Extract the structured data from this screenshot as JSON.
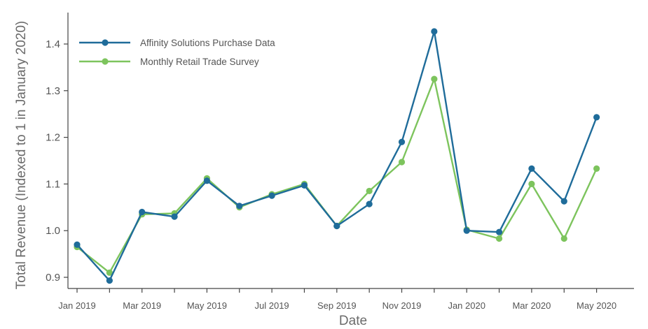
{
  "chart_data": {
    "type": "line",
    "title": "",
    "xlabel": "Date",
    "ylabel": "Total Revenue (Indexed to 1 in January 2020)",
    "ylim": [
      0.872,
      1.46
    ],
    "yticks": [
      0.9,
      1.0,
      1.1,
      1.2,
      1.3,
      1.4
    ],
    "ytick_labels": [
      "0.9",
      "1.0",
      "1.1",
      "1.2",
      "1.3",
      "1.4"
    ],
    "x": [
      "2019-01",
      "2019-02",
      "2019-03",
      "2019-04",
      "2019-05",
      "2019-06",
      "2019-07",
      "2019-08",
      "2019-09",
      "2019-10",
      "2019-11",
      "2019-12",
      "2020-01",
      "2020-02",
      "2020-03",
      "2020-04",
      "2020-05"
    ],
    "xtick_labels": [
      "Jan 2019",
      "Mar 2019",
      "May 2019",
      "Jul 2019",
      "Sep 2019",
      "Nov 2019",
      "Jan 2020",
      "Mar 2020",
      "May 2020"
    ],
    "grid": false,
    "legend_position": "top-left",
    "series": [
      {
        "name": "Affinity Solutions Purchase Data",
        "color": "#1f6c9a",
        "values": [
          0.97,
          0.893,
          1.04,
          1.03,
          1.107,
          1.053,
          1.075,
          1.097,
          1.01,
          1.057,
          1.19,
          1.427,
          1.0,
          0.997,
          1.133,
          1.063,
          1.243
        ]
      },
      {
        "name": "Monthly Retail Trade Survey",
        "color": "#7dc45d",
        "values": [
          0.965,
          0.91,
          1.035,
          1.037,
          1.112,
          1.05,
          1.078,
          1.1,
          1.01,
          1.085,
          1.147,
          1.325,
          1.002,
          0.983,
          1.1,
          0.983,
          1.133
        ]
      }
    ]
  }
}
